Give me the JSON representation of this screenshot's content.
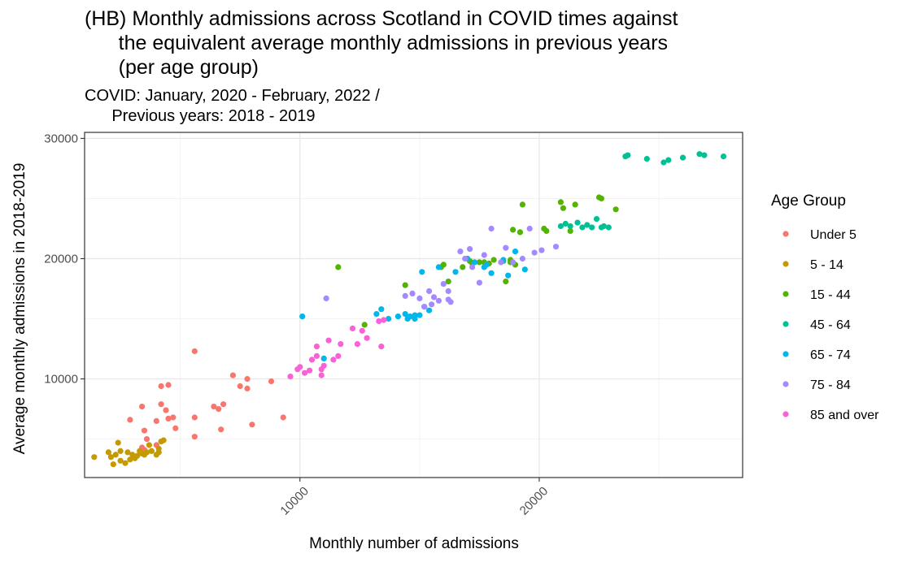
{
  "chart_data": {
    "type": "scatter",
    "title_lines": [
      "(HB) Monthly admissions across Scotland in COVID times against",
      "      the equivalent average monthly admissions in previous years",
      "      (per age group)"
    ],
    "subtitle_lines": [
      "COVID: January, 2020 - February, 2022 /",
      "      Previous years: 2018 - 2019"
    ],
    "xlabel": "Monthly number of admissions",
    "ylabel": "Average monthly admissions in 2018-2019",
    "xlim": [
      1000,
      28500
    ],
    "ylim": [
      1800,
      30500
    ],
    "x_ticks": [
      10000,
      20000
    ],
    "x_tick_labels": [
      "10000",
      "20000"
    ],
    "y_ticks": [
      10000,
      20000,
      30000
    ],
    "y_tick_labels": [
      "10000",
      "20000",
      "30000"
    ],
    "grid": true,
    "legend": {
      "title": "Age Group",
      "placement": "right"
    },
    "series": [
      {
        "name": "Under 5",
        "color": "#F8766D",
        "points": [
          [
            2900,
            6600
          ],
          [
            3400,
            7700
          ],
          [
            3500,
            5700
          ],
          [
            3600,
            5000
          ],
          [
            3400,
            4300
          ],
          [
            4000,
            6500
          ],
          [
            4200,
            9400
          ],
          [
            4500,
            9500
          ],
          [
            4200,
            7900
          ],
          [
            4400,
            7400
          ],
          [
            4500,
            6700
          ],
          [
            4700,
            6800
          ],
          [
            4800,
            5900
          ],
          [
            4000,
            4500
          ],
          [
            3500,
            4100
          ],
          [
            5600,
            12300
          ],
          [
            5600,
            6800
          ],
          [
            5600,
            5200
          ],
          [
            6400,
            7700
          ],
          [
            6600,
            7500
          ],
          [
            6800,
            7900
          ],
          [
            6700,
            5800
          ],
          [
            7200,
            10300
          ],
          [
            7500,
            9400
          ],
          [
            7800,
            10000
          ],
          [
            7800,
            9200
          ],
          [
            8000,
            6200
          ],
          [
            8800,
            9800
          ],
          [
            9300,
            6800
          ]
        ]
      },
      {
        "name": "5 - 14",
        "color": "#C49A00",
        "points": [
          [
            1400,
            3500
          ],
          [
            2000,
            3900
          ],
          [
            2100,
            3500
          ],
          [
            2200,
            2900
          ],
          [
            2300,
            3700
          ],
          [
            2400,
            4700
          ],
          [
            2500,
            4000
          ],
          [
            2500,
            3200
          ],
          [
            2700,
            3000
          ],
          [
            2800,
            3900
          ],
          [
            2900,
            3300
          ],
          [
            3000,
            3700
          ],
          [
            3100,
            3400
          ],
          [
            3200,
            3600
          ],
          [
            3300,
            4000
          ],
          [
            3400,
            3800
          ],
          [
            3500,
            3700
          ],
          [
            3700,
            4500
          ],
          [
            3600,
            3900
          ],
          [
            3800,
            4000
          ],
          [
            4000,
            3700
          ],
          [
            4100,
            4200
          ],
          [
            4200,
            4800
          ],
          [
            4300,
            4900
          ],
          [
            4100,
            3900
          ]
        ]
      },
      {
        "name": "15 - 44",
        "color": "#53B400",
        "points": [
          [
            11600,
            19300
          ],
          [
            12700,
            14500
          ],
          [
            14400,
            17800
          ],
          [
            15900,
            19300
          ],
          [
            16200,
            18100
          ],
          [
            16000,
            19500
          ],
          [
            16800,
            19300
          ],
          [
            17200,
            19600
          ],
          [
            17100,
            19800
          ],
          [
            17500,
            19700
          ],
          [
            17700,
            19700
          ],
          [
            17900,
            19600
          ],
          [
            18100,
            19900
          ],
          [
            18500,
            19800
          ],
          [
            18600,
            18100
          ],
          [
            18800,
            19900
          ],
          [
            18900,
            22400
          ],
          [
            19300,
            24500
          ],
          [
            19200,
            22200
          ],
          [
            20200,
            22500
          ],
          [
            20300,
            22300
          ],
          [
            20900,
            24700
          ],
          [
            21000,
            24200
          ],
          [
            21300,
            22300
          ],
          [
            21500,
            24500
          ],
          [
            22500,
            25100
          ],
          [
            22600,
            25000
          ],
          [
            23200,
            24100
          ],
          [
            19000,
            19500
          ],
          [
            18800,
            19700
          ]
        ]
      },
      {
        "name": "45 - 64",
        "color": "#00C094",
        "points": [
          [
            20900,
            22700
          ],
          [
            21100,
            22900
          ],
          [
            21300,
            22700
          ],
          [
            21600,
            23000
          ],
          [
            21800,
            22600
          ],
          [
            22000,
            22800
          ],
          [
            22200,
            22600
          ],
          [
            22400,
            23300
          ],
          [
            22600,
            22600
          ],
          [
            22700,
            22700
          ],
          [
            22900,
            22600
          ],
          [
            23600,
            28500
          ],
          [
            23700,
            28600
          ],
          [
            24500,
            28300
          ],
          [
            25200,
            28000
          ],
          [
            25400,
            28200
          ],
          [
            26000,
            28400
          ],
          [
            26700,
            28700
          ],
          [
            26900,
            28600
          ],
          [
            27700,
            28500
          ]
        ]
      },
      {
        "name": "65 - 74",
        "color": "#00B6EB",
        "points": [
          [
            10100,
            15200
          ],
          [
            11000,
            11700
          ],
          [
            13200,
            15400
          ],
          [
            13400,
            15800
          ],
          [
            13700,
            15000
          ],
          [
            14100,
            15200
          ],
          [
            14400,
            15400
          ],
          [
            14500,
            15000
          ],
          [
            14600,
            15200
          ],
          [
            14800,
            15300
          ],
          [
            14800,
            15000
          ],
          [
            15000,
            15300
          ],
          [
            15100,
            18900
          ],
          [
            15200,
            16000
          ],
          [
            15400,
            15700
          ],
          [
            15800,
            19300
          ],
          [
            16500,
            18900
          ],
          [
            17000,
            20000
          ],
          [
            17300,
            19700
          ],
          [
            17700,
            19300
          ],
          [
            17800,
            19500
          ],
          [
            18000,
            18800
          ],
          [
            18500,
            19900
          ],
          [
            19000,
            20600
          ],
          [
            19400,
            19100
          ],
          [
            18700,
            18600
          ]
        ]
      },
      {
        "name": "75 - 84",
        "color": "#A58AFF",
        "points": [
          [
            11100,
            16700
          ],
          [
            14400,
            16900
          ],
          [
            14700,
            17100
          ],
          [
            15000,
            16700
          ],
          [
            15200,
            16000
          ],
          [
            15400,
            17300
          ],
          [
            15600,
            16800
          ],
          [
            15800,
            16500
          ],
          [
            16000,
            17900
          ],
          [
            16200,
            17300
          ],
          [
            16200,
            16600
          ],
          [
            16900,
            20000
          ],
          [
            17100,
            20800
          ],
          [
            17200,
            19300
          ],
          [
            17500,
            18000
          ],
          [
            17700,
            20300
          ],
          [
            18000,
            22500
          ],
          [
            18400,
            19700
          ],
          [
            18600,
            20900
          ],
          [
            18900,
            19700
          ],
          [
            19300,
            20000
          ],
          [
            19600,
            22500
          ],
          [
            19800,
            20500
          ],
          [
            20100,
            20700
          ],
          [
            20700,
            21000
          ],
          [
            16700,
            20600
          ],
          [
            16300,
            16400
          ],
          [
            15500,
            16200
          ]
        ]
      },
      {
        "name": "85 and over",
        "color": "#FB61D7",
        "points": [
          [
            9600,
            10200
          ],
          [
            9900,
            10800
          ],
          [
            10000,
            11000
          ],
          [
            10200,
            10500
          ],
          [
            10400,
            10700
          ],
          [
            10500,
            11600
          ],
          [
            10700,
            12700
          ],
          [
            10900,
            10300
          ],
          [
            10900,
            10800
          ],
          [
            11000,
            11100
          ],
          [
            11200,
            13200
          ],
          [
            11400,
            11600
          ],
          [
            11600,
            11900
          ],
          [
            12200,
            14200
          ],
          [
            12400,
            12900
          ],
          [
            12800,
            13400
          ],
          [
            13300,
            14800
          ],
          [
            13500,
            14900
          ],
          [
            13400,
            12700
          ],
          [
            12600,
            14000
          ],
          [
            11700,
            12900
          ],
          [
            10700,
            11900
          ]
        ]
      }
    ]
  }
}
